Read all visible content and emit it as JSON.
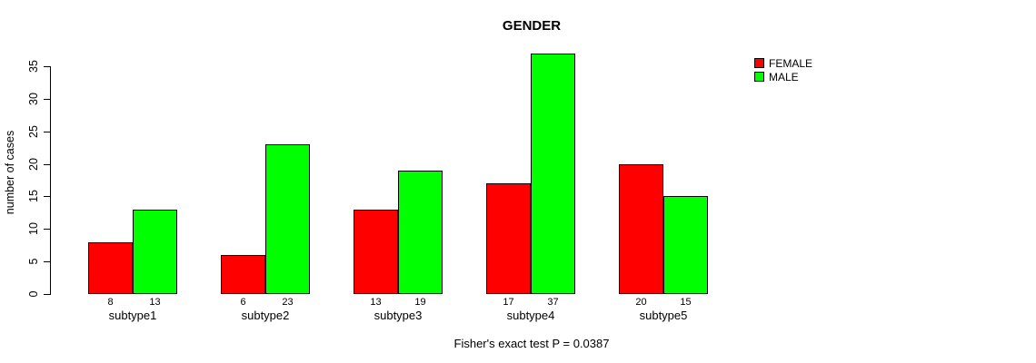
{
  "chart_data": {
    "type": "bar",
    "title": "GENDER",
    "xlabel": "",
    "ylabel": "number of cases",
    "categories": [
      "subtype1",
      "subtype2",
      "subtype3",
      "subtype4",
      "subtype5"
    ],
    "series": [
      {
        "name": "FEMALE",
        "color": "#ff0000",
        "values": [
          8,
          6,
          13,
          17,
          20
        ]
      },
      {
        "name": "MALE",
        "color": "#00ff00",
        "values": [
          13,
          23,
          19,
          37,
          15
        ]
      }
    ],
    "yticks": [
      0,
      5,
      10,
      15,
      20,
      25,
      30,
      35
    ],
    "ylim": [
      0,
      37
    ],
    "grid": false,
    "legend_position": "top-right",
    "bar_value_labels_shown": true,
    "annotation": "Fisher's exact test P = 0.0387",
    "background_color": "#ffffff",
    "text_color": "#000000"
  }
}
